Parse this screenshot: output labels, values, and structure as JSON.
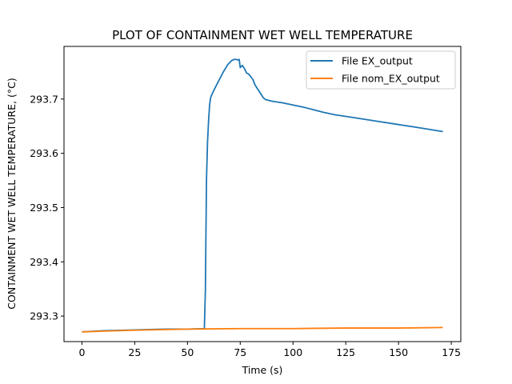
{
  "chart_data": {
    "type": "line",
    "title": "PLOT OF CONTAINMENT WET WELL TEMPERATURE",
    "xlabel": "Time (s)",
    "ylabel": "CONTAINMENT WET WELL TEMPERATURE, (°C)",
    "xlim": [
      -8.5,
      179.5
    ],
    "ylim": [
      293.253,
      293.797
    ],
    "xticks": [
      0,
      25,
      50,
      75,
      100,
      125,
      150,
      175
    ],
    "yticks": [
      293.3,
      293.4,
      293.5,
      293.6,
      293.7
    ],
    "grid": false,
    "legend_position": "top-right",
    "series": [
      {
        "name": "File EX_output",
        "color": "#1f77b4",
        "x": [
          0,
          10,
          20,
          30,
          40,
          50,
          58,
          58.5,
          59,
          59.5,
          60,
          60.5,
          61,
          62,
          63,
          65,
          67,
          69,
          71,
          72,
          73,
          74,
          74.5,
          75,
          76,
          77,
          78,
          79,
          80,
          81,
          82,
          83,
          84,
          85,
          86,
          87,
          88,
          90,
          95,
          100,
          105,
          110,
          112,
          113,
          114,
          115,
          120,
          130,
          140,
          150,
          160,
          171
        ],
        "y": [
          293.271,
          293.273,
          293.274,
          293.275,
          293.276,
          293.276,
          293.277,
          293.35,
          293.55,
          293.62,
          293.66,
          293.69,
          293.703,
          293.712,
          293.72,
          293.735,
          293.75,
          293.763,
          293.771,
          293.773,
          293.773,
          293.772,
          293.773,
          293.758,
          293.762,
          293.756,
          293.748,
          293.746,
          293.741,
          293.736,
          293.726,
          293.72,
          293.714,
          293.708,
          293.702,
          293.699,
          293.698,
          293.696,
          293.693,
          293.689,
          293.685,
          293.68,
          293.678,
          293.677,
          293.676,
          293.675,
          293.671,
          293.665,
          293.659,
          293.653,
          293.647,
          293.64
        ]
      },
      {
        "name": "File nom_EX_output",
        "color": "#ff7f0e",
        "x": [
          0,
          25,
          50,
          75,
          100,
          125,
          150,
          171
        ],
        "y": [
          293.271,
          293.274,
          293.276,
          293.277,
          293.277,
          293.278,
          293.278,
          293.279
        ]
      }
    ]
  }
}
